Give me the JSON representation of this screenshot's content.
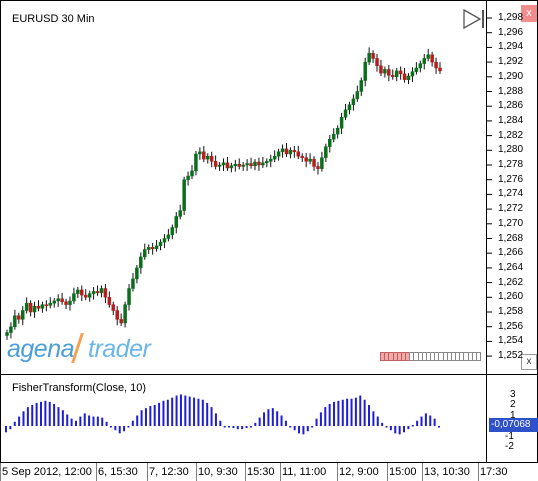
{
  "chart": {
    "symbol_title": "EURUSD 30 Min",
    "price_labels": [
      "1,298",
      "1,296",
      "1,294",
      "1,292",
      "1,290",
      "1,288",
      "1,286",
      "1,284",
      "1,282",
      "1,280",
      "1,278",
      "1,276",
      "1,274",
      "1,272",
      "1,270",
      "1,268",
      "1,266",
      "1,264",
      "1,262",
      "1,260",
      "1,258",
      "1,256",
      "1,254",
      "1,252"
    ],
    "indicator_title": "FisherTransform(Close, 10)",
    "indicator_labels": [
      "3",
      "2",
      "1",
      "-1",
      "-2"
    ],
    "indicator_current_value": "-0,07068",
    "time_labels": [
      "5 Sep 2012, 12:00",
      "6, 15:30",
      "7, 12:30",
      "10, 9:30",
      "15:30",
      "11, 11:00",
      "12, 9:00",
      "15:00",
      "13, 10:30",
      "17:30"
    ],
    "colors": {
      "up": "#0a6e1c",
      "down": "#b41e1e",
      "indicator": "#1e1ed2",
      "value_badge": "#2e50c8"
    },
    "scroll_position": {
      "filled_segments": 7,
      "total_segments": 24
    }
  },
  "branding": {
    "logo_part1": "agena",
    "logo_part2": "trader"
  },
  "controls": {
    "play_icon": "play-triangle-icon",
    "close_top": "x",
    "close_bottom": "x"
  },
  "chart_data": {
    "type": "candlestick",
    "title": "EURUSD 30 Min",
    "ylim": [
      1.2515,
      1.299
    ],
    "closes": [
      1.2552,
      1.256,
      1.2575,
      1.257,
      1.2582,
      1.2592,
      1.258,
      1.2588,
      1.2585,
      1.259,
      1.2589,
      1.2592,
      1.2595,
      1.2598,
      1.2594,
      1.259,
      1.2595,
      1.2605,
      1.261,
      1.2603,
      1.26,
      1.2605,
      1.2608,
      1.2606,
      1.2612,
      1.26,
      1.259,
      1.2582,
      1.257,
      1.2565,
      1.259,
      1.2612,
      1.2625,
      1.264,
      1.2655,
      1.2665,
      1.2668,
      1.2666,
      1.267,
      1.2675,
      1.268,
      1.2685,
      1.2695,
      1.271,
      1.2718,
      1.276,
      1.2765,
      1.2772,
      1.2795,
      1.2798,
      1.2788,
      1.2792,
      1.2785,
      1.2778,
      1.278,
      1.2783,
      1.2776,
      1.2779,
      1.2781,
      1.2778,
      1.278,
      1.2782,
      1.2779,
      1.2784,
      1.278,
      1.2783,
      1.2785,
      1.2788,
      1.2792,
      1.2798,
      1.2802,
      1.2795,
      1.28,
      1.2798,
      1.2792,
      1.279,
      1.2785,
      1.2788,
      1.2778,
      1.2775,
      1.279,
      1.2805,
      1.2815,
      1.2822,
      1.283,
      1.2845,
      1.2855,
      1.2862,
      1.287,
      1.288,
      1.2895,
      1.292,
      1.2932,
      1.2925,
      1.2915,
      1.2905,
      1.291,
      1.2902,
      1.29,
      1.2908,
      1.2904,
      1.2896,
      1.2901,
      1.2907,
      1.2912,
      1.2918,
      1.2925,
      1.293,
      1.292,
      1.2912,
      1.2908
    ],
    "fisher": [
      -0.6,
      -0.3,
      0.4,
      0.9,
      1.4,
      1.8,
      2.0,
      2.2,
      2.3,
      2.4,
      2.3,
      2.1,
      1.8,
      1.5,
      1.1,
      0.7,
      0.5,
      0.9,
      1.2,
      1.0,
      0.9,
      0.9,
      0.8,
      0.4,
      0.0,
      -0.4,
      -0.7,
      -0.5,
      0.0,
      0.5,
      1.0,
      1.5,
      1.7,
      1.9,
      2.0,
      2.2,
      2.4,
      2.5,
      2.7,
      2.9,
      3.0,
      2.9,
      2.8,
      2.7,
      2.6,
      2.5,
      2.2,
      1.8,
      1.2,
      0.5,
      0.0,
      -0.1,
      -0.2,
      -0.3,
      -0.3,
      -0.2,
      -0.1,
      0.3,
      0.8,
      1.3,
      1.6,
      1.7,
      1.4,
      1.0,
      0.5,
      0.0,
      -0.4,
      -0.7,
      -0.8,
      -0.5,
      0.0,
      0.7,
      1.3,
      1.8,
      2.1,
      2.3,
      2.4,
      2.5,
      2.6,
      2.6,
      2.7,
      2.9,
      2.5,
      2.0,
      1.4,
      0.9,
      0.3,
      -0.1,
      -0.4,
      -0.7,
      -0.8,
      -0.6,
      -0.3,
      0.1,
      0.5,
      0.9,
      1.2,
      1.0,
      0.7,
      -0.07
    ]
  }
}
